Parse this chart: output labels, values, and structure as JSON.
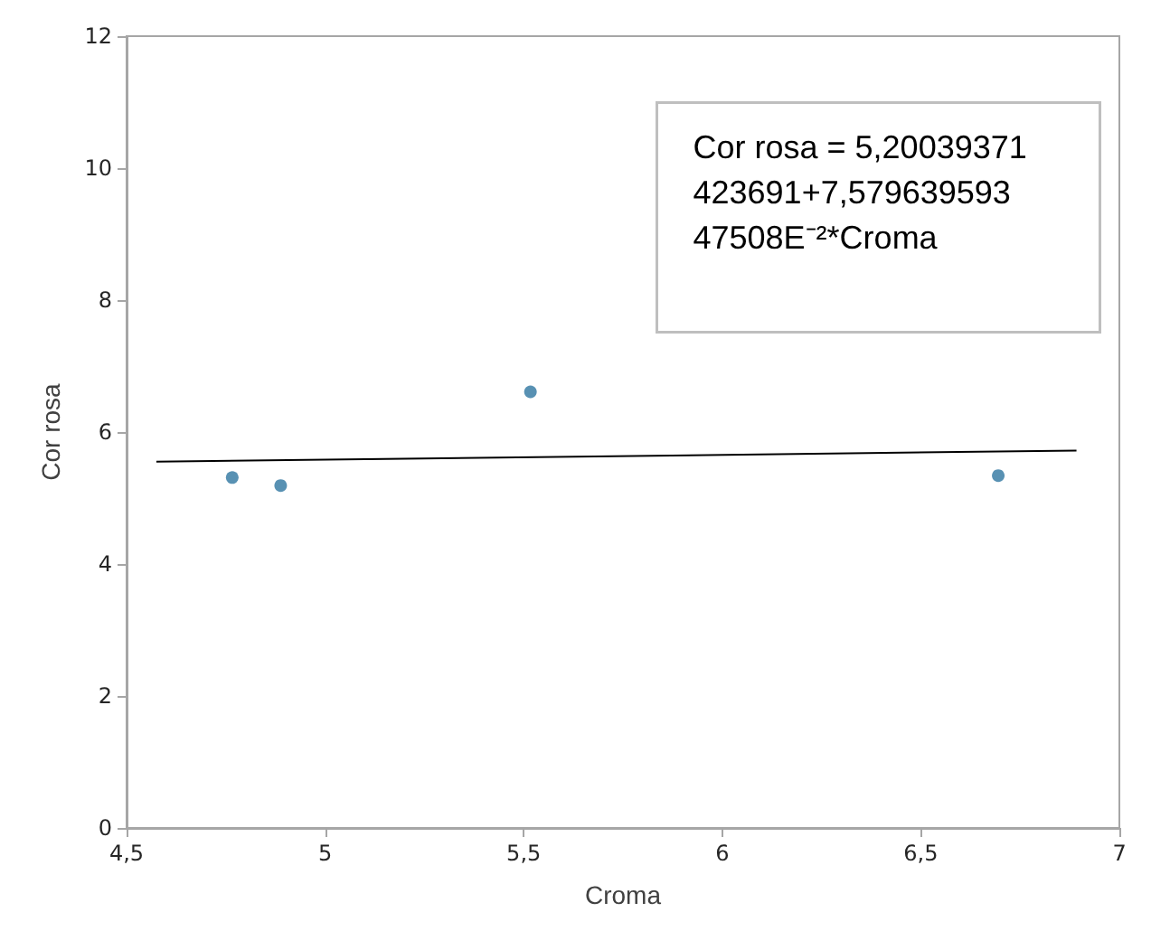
{
  "chart_data": {
    "type": "scatter",
    "xlabel": "Croma",
    "ylabel": "Cor rosa",
    "xlim": [
      4.5,
      7
    ],
    "xticks": [
      {
        "value": 4.5,
        "label": "4,5"
      },
      5,
      {
        "value": 5.5,
        "label": "5,5"
      },
      6,
      {
        "value": 6.5,
        "label": "6,5"
      },
      7
    ],
    "ylim": [
      0,
      12
    ],
    "yticks": [
      0,
      2,
      4,
      6,
      8,
      10,
      12
    ],
    "grid": false,
    "marker": "circle",
    "series": [
      {
        "type": "scatter",
        "color": "#2e75a0",
        "x": [
          4.766,
          4.888,
          5.517,
          6.695
        ],
        "values": [
          5.31,
          5.19,
          6.61,
          5.34
        ]
      },
      {
        "type": "line",
        "color": "#000000",
        "marker": "none",
        "x": [
          4.575,
          6.892
        ],
        "values": [
          5.55,
          5.72
        ]
      }
    ],
    "annotations": [
      "Cor rosa = 5,20039371423691+7,57963959347508E⁻²*Croma"
    ]
  }
}
